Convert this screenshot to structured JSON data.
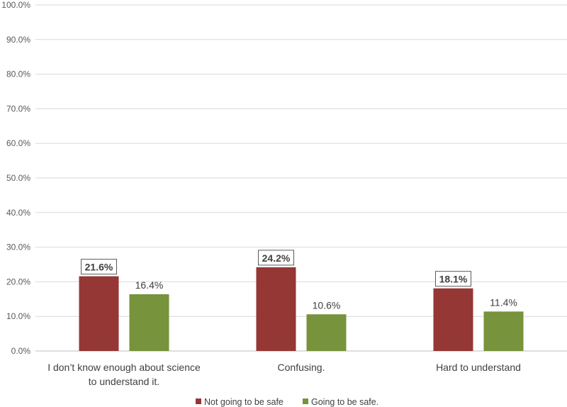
{
  "chart_data": {
    "type": "bar",
    "title": "",
    "xlabel": "",
    "ylabel": "",
    "ylim": [
      0,
      100
    ],
    "yticks": [
      "0.0%",
      "10.0%",
      "20.0%",
      "30.0%",
      "40.0%",
      "50.0%",
      "60.0%",
      "70.0%",
      "80.0%",
      "90.0%",
      "100.0%"
    ],
    "categories": [
      [
        "I don’t know enough about science",
        "to understand it."
      ],
      [
        "Confusing."
      ],
      [
        "Hard to understand"
      ]
    ],
    "series": [
      {
        "name": "Not going to be safe",
        "color": "#953735",
        "values": [
          21.6,
          24.2,
          18.1
        ],
        "labels": [
          "21.6%",
          "24.2%",
          "18.1%"
        ],
        "boxed_labels": true
      },
      {
        "name": "Going to be safe.",
        "color": "#77933C",
        "values": [
          16.4,
          10.6,
          11.4
        ],
        "labels": [
          "16.4%",
          "10.6%",
          "11.4%"
        ],
        "boxed_labels": false
      }
    ],
    "legend_position": "bottom-center",
    "grid": true
  }
}
